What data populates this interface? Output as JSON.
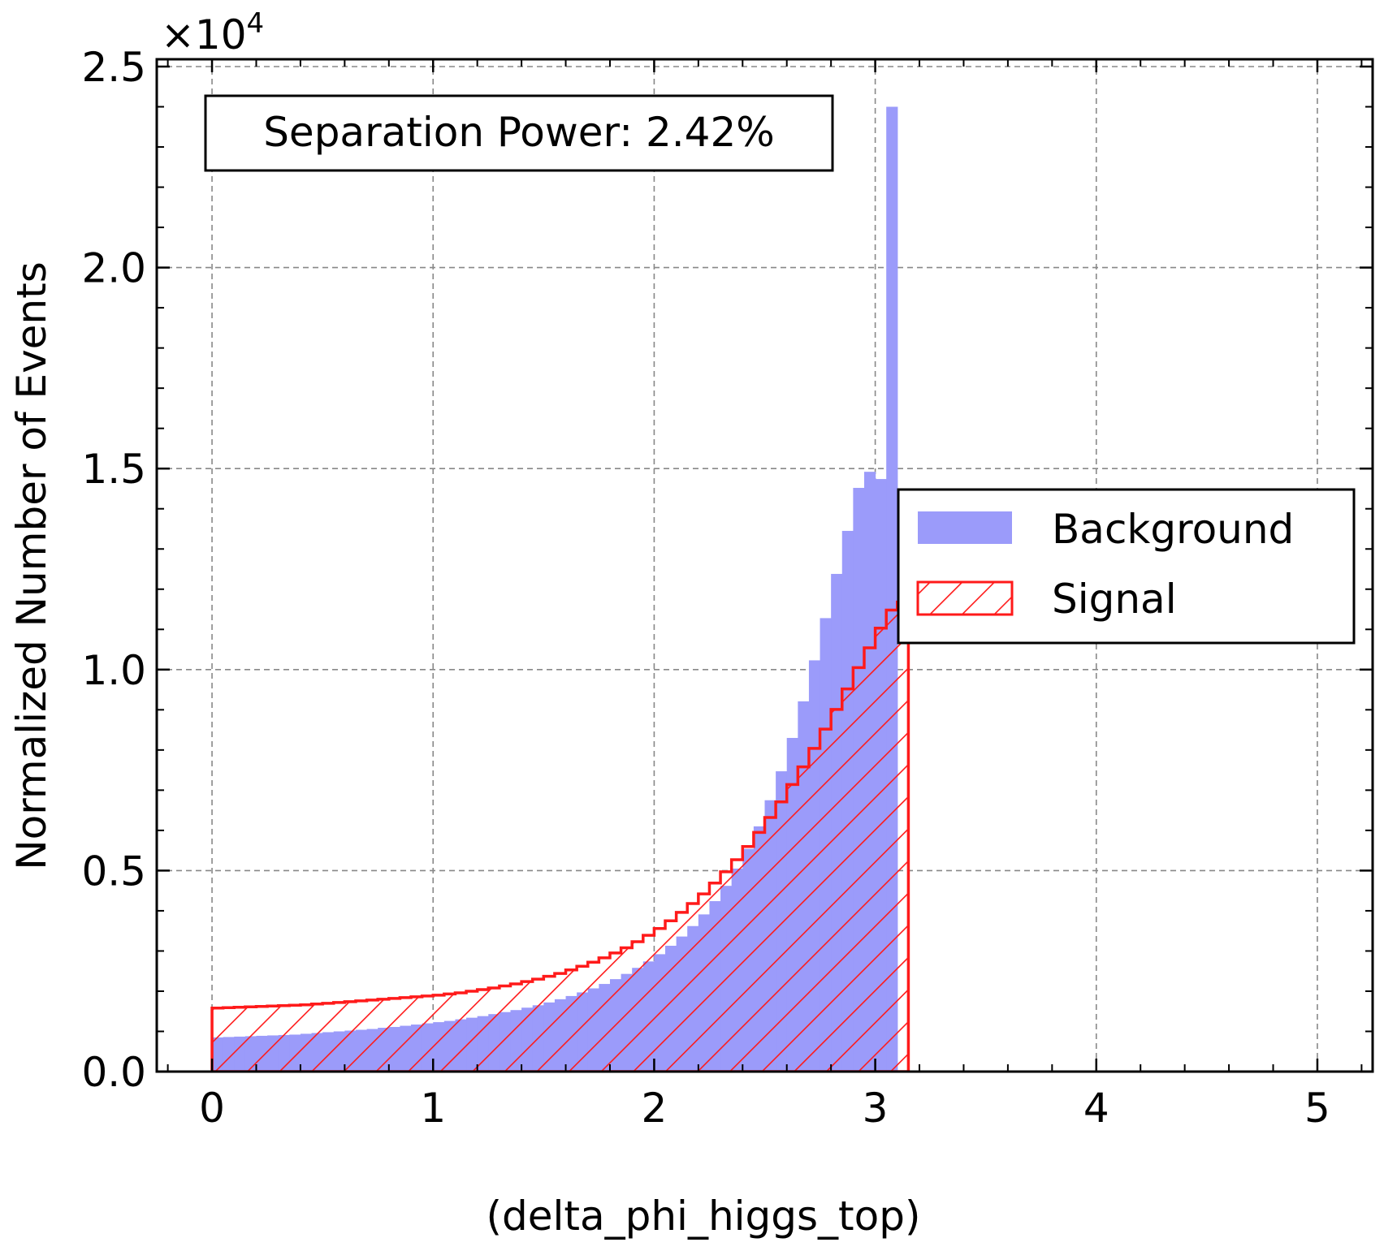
{
  "chart_data": {
    "type": "histogram",
    "xlabel": "(delta_phi_higgs_top)",
    "ylabel": "Normalized Number of Events",
    "y_multiplier": "×10",
    "y_multiplier_exp": "4",
    "xlim": [
      -0.25,
      5.25
    ],
    "ylim": [
      0,
      25500
    ],
    "xticks": [
      0,
      1,
      2,
      3,
      4,
      5
    ],
    "xtick_labels": [
      "0",
      "1",
      "2",
      "3",
      "4",
      "5"
    ],
    "yticks": [
      0,
      5000,
      10000,
      15000,
      20000,
      25000
    ],
    "ytick_labels": [
      "0.0",
      "0.5",
      "1.0",
      "1.5",
      "2.0",
      "2.5"
    ],
    "grid": true,
    "annotation": "Separation Power: 2.42%",
    "legend": {
      "position": "center-right",
      "entries": [
        {
          "label": "Background",
          "style": "filled",
          "color": "#9b9bfa"
        },
        {
          "label": "Signal",
          "style": "hatched",
          "color": "#ff1a1a"
        }
      ]
    },
    "bin_edges": [
      0.0,
      0.05,
      0.1,
      0.15,
      0.2,
      0.25,
      0.3,
      0.35,
      0.4,
      0.45,
      0.5,
      0.55,
      0.6,
      0.65,
      0.7,
      0.75,
      0.8,
      0.85,
      0.9,
      0.95,
      1.0,
      1.05,
      1.1,
      1.15,
      1.2,
      1.25,
      1.3,
      1.35,
      1.4,
      1.45,
      1.5,
      1.55,
      1.6,
      1.65,
      1.7,
      1.75,
      1.8,
      1.85,
      1.9,
      1.95,
      2.0,
      2.05,
      2.1,
      2.15,
      2.2,
      2.25,
      2.3,
      2.35,
      2.4,
      2.45,
      2.5,
      2.55,
      2.6,
      2.65,
      2.7,
      2.75,
      2.8,
      2.85,
      2.9,
      2.95,
      3.0,
      3.05,
      3.1,
      3.15
    ],
    "series": [
      {
        "name": "Background",
        "values": [
          850,
          860,
          870,
          880,
          890,
          900,
          910,
          920,
          940,
          960,
          980,
          1000,
          1020,
          1040,
          1060,
          1090,
          1110,
          1140,
          1170,
          1200,
          1230,
          1260,
          1300,
          1340,
          1380,
          1430,
          1480,
          1530,
          1590,
          1650,
          1720,
          1800,
          1880,
          1970,
          2070,
          2180,
          2300,
          2430,
          2580,
          2740,
          2920,
          3130,
          3360,
          3620,
          3910,
          4240,
          4620,
          5050,
          5540,
          6100,
          6750,
          7470,
          8300,
          9210,
          10230,
          11280,
          12380,
          13450,
          14520,
          14920,
          14740,
          24000,
          0
        ]
      },
      {
        "name": "Signal",
        "values": [
          1580,
          1590,
          1600,
          1610,
          1620,
          1630,
          1640,
          1650,
          1660,
          1680,
          1700,
          1720,
          1740,
          1760,
          1780,
          1800,
          1820,
          1840,
          1860,
          1880,
          1900,
          1930,
          1960,
          2000,
          2040,
          2080,
          2130,
          2180,
          2240,
          2300,
          2370,
          2440,
          2530,
          2620,
          2720,
          2830,
          2950,
          3080,
          3230,
          3390,
          3560,
          3750,
          3960,
          4180,
          4420,
          4690,
          4970,
          5270,
          5600,
          5950,
          6320,
          6710,
          7140,
          7580,
          8040,
          8520,
          9010,
          9520,
          10050,
          10540,
          11030,
          11480,
          11680
        ]
      }
    ]
  }
}
